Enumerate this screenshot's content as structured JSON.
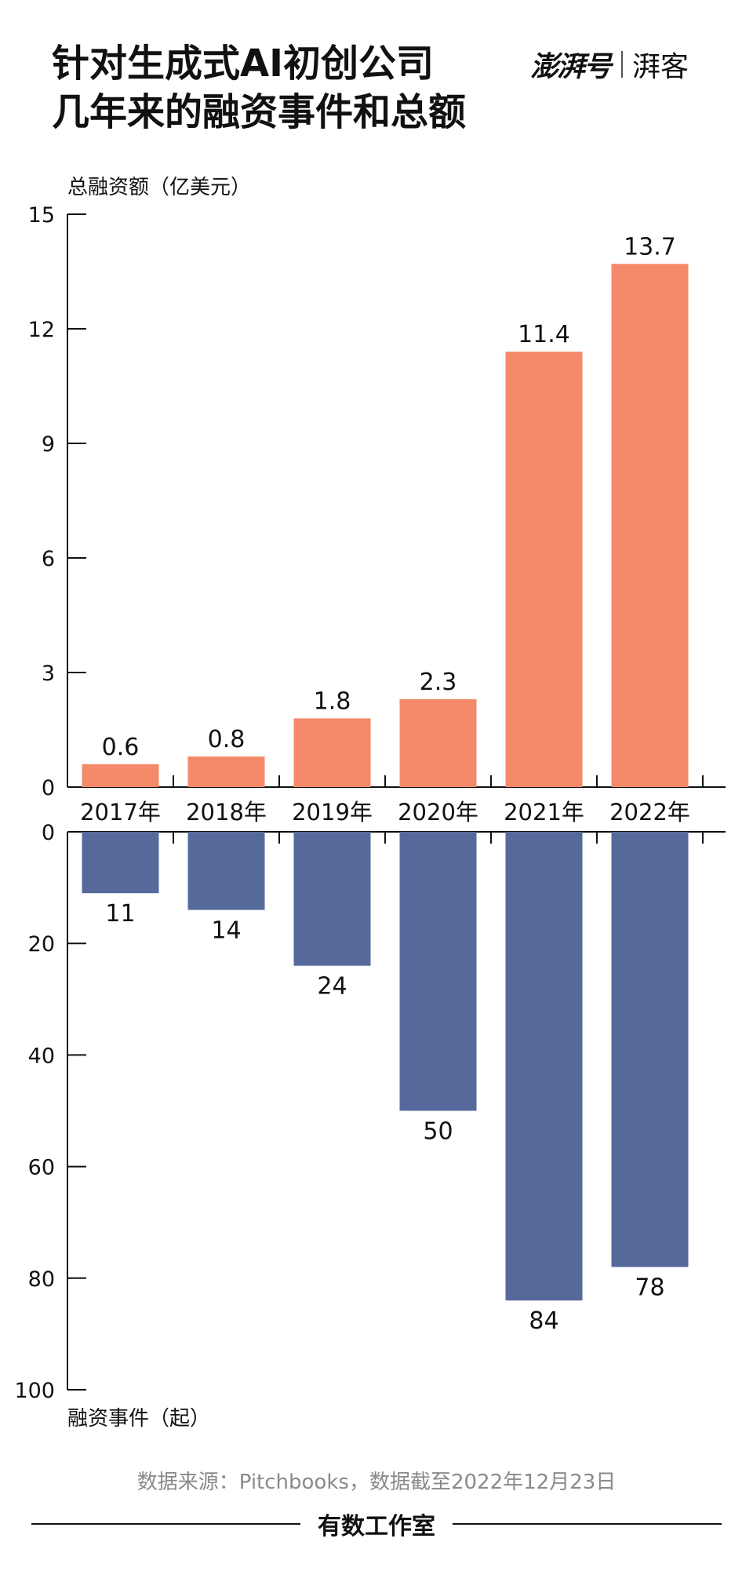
{
  "header": {
    "title_line1": "针对生成式AI初创公司",
    "title_line2": "几年来的融资事件和总额",
    "brand_main": "澎湃号",
    "brand_sub": "湃客"
  },
  "footer": {
    "source": "数据来源：Pitchbooks，数据截至2022年12月23日",
    "studio": "有数工作室"
  },
  "colors": {
    "amount_bar": "#F48A69",
    "events_bar": "#56699B",
    "axis": "#111111"
  },
  "chart_data": {
    "type": "bar",
    "title": "针对生成式AI初创公司几年来的融资事件和总额",
    "categories": [
      "2017年",
      "2018年",
      "2019年",
      "2020年",
      "2021年",
      "2022年"
    ],
    "series": [
      {
        "name": "总融资额",
        "axis_label": "总融资额（亿美元）",
        "values": [
          0.6,
          0.8,
          1.8,
          2.3,
          11.4,
          13.7
        ],
        "value_labels": [
          "0.6",
          "0.8",
          "1.8",
          "2.3",
          "11.4",
          "13.7"
        ],
        "ylim": [
          0,
          15
        ],
        "ticks": [
          0,
          3,
          6,
          9,
          12,
          15
        ],
        "direction": "up"
      },
      {
        "name": "融资事件",
        "axis_label": "融资事件（起）",
        "values": [
          11,
          14,
          24,
          50,
          84,
          78
        ],
        "value_labels": [
          "11",
          "14",
          "24",
          "50",
          "84",
          "78"
        ],
        "ylim": [
          0,
          100
        ],
        "ticks": [
          0,
          20,
          40,
          60,
          80,
          100
        ],
        "direction": "down"
      }
    ]
  }
}
